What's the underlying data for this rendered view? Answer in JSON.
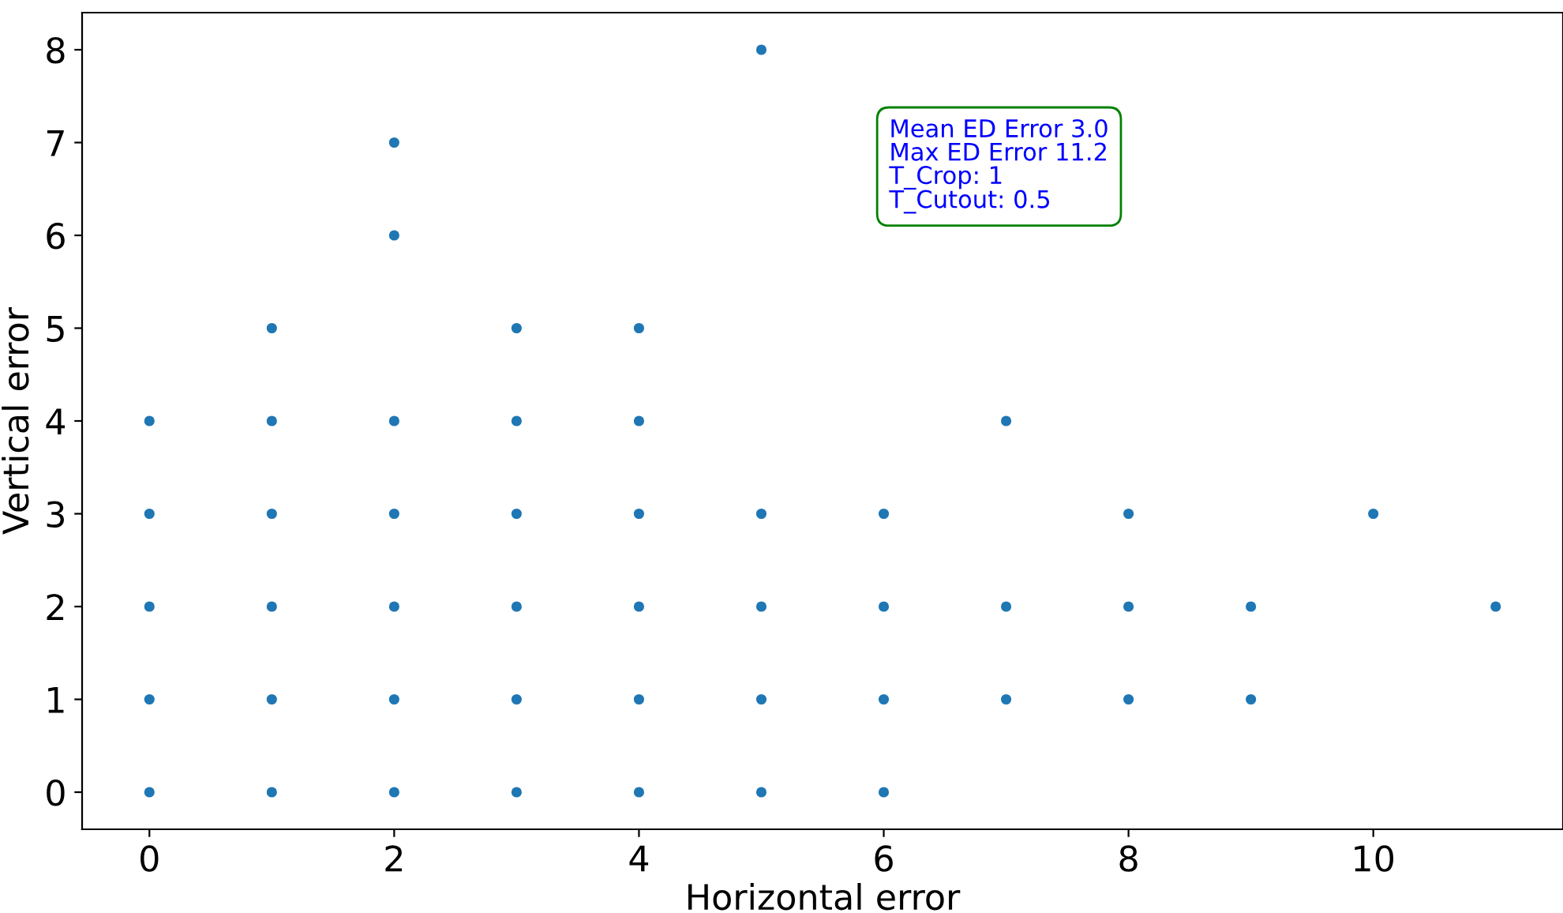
{
  "chart_data": {
    "type": "scatter",
    "xlabel": "Horizontal error",
    "ylabel": "Vertical error",
    "x": [
      0,
      0,
      0,
      0,
      0,
      1,
      1,
      1,
      1,
      1,
      1,
      2,
      2,
      2,
      2,
      2,
      2,
      2,
      3,
      3,
      3,
      3,
      3,
      3,
      4,
      4,
      4,
      4,
      4,
      4,
      5,
      5,
      5,
      5,
      5,
      6,
      6,
      6,
      6,
      7,
      7,
      7,
      8,
      8,
      8,
      9,
      9,
      10,
      11
    ],
    "values": [
      0,
      1,
      2,
      3,
      4,
      0,
      1,
      2,
      3,
      4,
      5,
      0,
      1,
      2,
      3,
      4,
      6,
      7,
      0,
      1,
      2,
      3,
      4,
      5,
      0,
      1,
      2,
      3,
      4,
      5,
      0,
      1,
      2,
      3,
      8,
      0,
      1,
      2,
      3,
      1,
      2,
      4,
      1,
      2,
      3,
      1,
      2,
      3,
      2
    ],
    "color": "#1f77b4",
    "marker": "circle",
    "grid": false,
    "xlim": [
      -0.55,
      11.55
    ],
    "ylim": [
      -0.4,
      8.4
    ],
    "xticks": [
      0,
      2,
      4,
      6,
      8,
      10
    ],
    "yticks": [
      0,
      1,
      2,
      3,
      4,
      5,
      6,
      7,
      8
    ],
    "annotations": [
      "Mean ED Error 3.0\nMax ED Error 11.2\nT_Crop: 1\nT_Cutout: 0.5"
    ]
  }
}
